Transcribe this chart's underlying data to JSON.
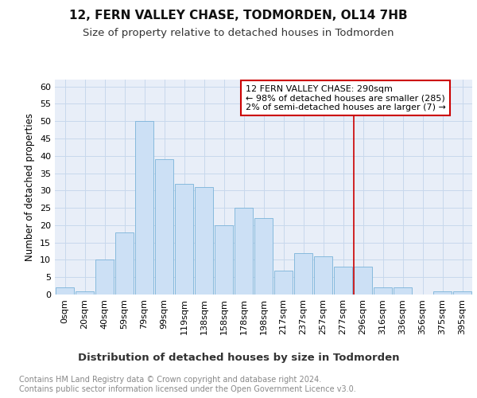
{
  "title": "12, FERN VALLEY CHASE, TODMORDEN, OL14 7HB",
  "subtitle": "Size of property relative to detached houses in Todmorden",
  "xlabel": "Distribution of detached houses by size in Todmorden",
  "ylabel": "Number of detached properties",
  "bar_labels": [
    "0sqm",
    "20sqm",
    "40sqm",
    "59sqm",
    "79sqm",
    "99sqm",
    "119sqm",
    "138sqm",
    "158sqm",
    "178sqm",
    "198sqm",
    "217sqm",
    "237sqm",
    "257sqm",
    "277sqm",
    "296sqm",
    "316sqm",
    "336sqm",
    "356sqm",
    "375sqm",
    "395sqm"
  ],
  "bar_heights": [
    2,
    1,
    10,
    18,
    50,
    39,
    32,
    31,
    20,
    25,
    22,
    7,
    12,
    11,
    8,
    8,
    2,
    2,
    0,
    1,
    1
  ],
  "bar_color": "#cce0f5",
  "bar_edge_color": "#7ab3d9",
  "grid_color": "#c8d8ec",
  "background_color": "#e8eef8",
  "ylim": [
    0,
    62
  ],
  "yticks": [
    0,
    5,
    10,
    15,
    20,
    25,
    30,
    35,
    40,
    45,
    50,
    55,
    60
  ],
  "red_line_x": 14.55,
  "annotation_text": "12 FERN VALLEY CHASE: 290sqm\n← 98% of detached houses are smaller (285)\n2% of semi-detached houses are larger (7) →",
  "annotation_box_facecolor": "#ffffff",
  "annotation_box_edgecolor": "#cc0000",
  "footer_text": "Contains HM Land Registry data © Crown copyright and database right 2024.\nContains public sector information licensed under the Open Government Licence v3.0.",
  "title_fontsize": 11,
  "subtitle_fontsize": 9.5,
  "ylabel_fontsize": 8.5,
  "xlabel_fontsize": 9.5,
  "tick_fontsize": 8,
  "annotation_fontsize": 8,
  "footer_fontsize": 7
}
